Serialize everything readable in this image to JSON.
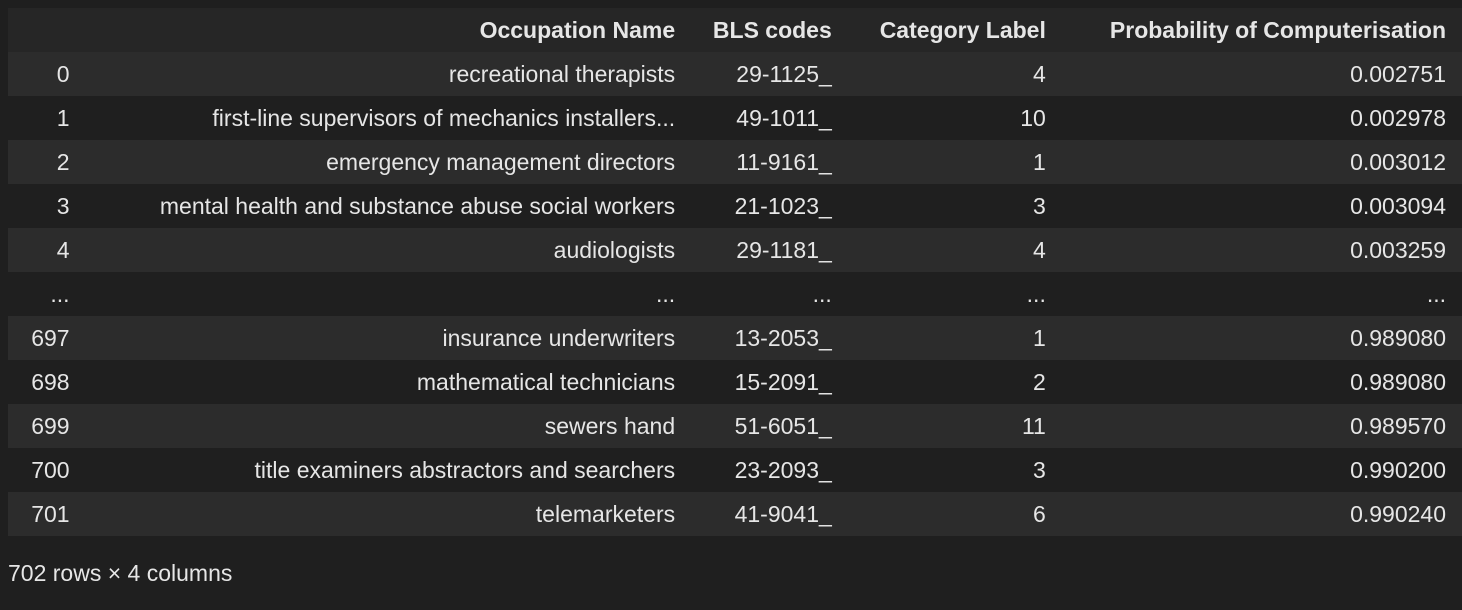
{
  "table": {
    "columns": [
      "",
      "Occupation Name",
      "BLS codes",
      "Category Label",
      "Probability of Computerisation"
    ],
    "rows": [
      [
        "0",
        "recreational therapists",
        "29-1125_",
        "4",
        "0.002751"
      ],
      [
        "1",
        "first-line supervisors of mechanics installers...",
        "49-1011_",
        "10",
        "0.002978"
      ],
      [
        "2",
        "emergency management directors",
        "11-9161_",
        "1",
        "0.003012"
      ],
      [
        "3",
        "mental health and substance abuse social workers",
        "21-1023_",
        "3",
        "0.003094"
      ],
      [
        "4",
        "audiologists",
        "29-1181_",
        "4",
        "0.003259"
      ],
      [
        "...",
        "...",
        "...",
        "...",
        "..."
      ],
      [
        "697",
        "insurance underwriters",
        "13-2053_",
        "1",
        "0.989080"
      ],
      [
        "698",
        "mathematical technicians",
        "15-2091_",
        "2",
        "0.989080"
      ],
      [
        "699",
        "sewers hand",
        "51-6051_",
        "11",
        "0.989570"
      ],
      [
        "700",
        "title examiners abstractors and searchers",
        "23-2093_",
        "3",
        "0.990200"
      ],
      [
        "701",
        "telemarketers",
        "41-9041_",
        "6",
        "0.990240"
      ]
    ]
  },
  "footer": "702 rows × 4 columns"
}
